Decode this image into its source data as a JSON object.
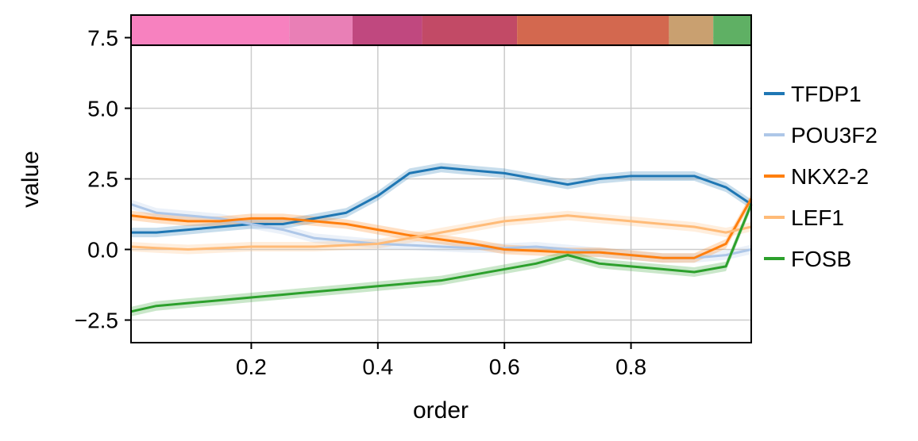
{
  "chart_data": {
    "type": "line",
    "xlabel": "order",
    "ylabel": "value",
    "xlim": [
      0.01,
      0.99
    ],
    "ylim": [
      -3.3,
      8.3
    ],
    "grid": true,
    "legend_placement": "right",
    "x_ticks": [
      0.2,
      0.4,
      0.6,
      0.8
    ],
    "x_tick_labels": [
      "0.2",
      "0.4",
      "0.6",
      "0.8"
    ],
    "y_ticks": [
      -2.5,
      0.0,
      2.5,
      5.0,
      7.5
    ],
    "y_tick_labels": [
      "−2.5",
      "0.0",
      "2.5",
      "5.0",
      "7.5"
    ],
    "color_bar": {
      "y_range": [
        7.2,
        8.3
      ],
      "segments": [
        {
          "from": 0.01,
          "to": 0.26,
          "color": "#f781bf"
        },
        {
          "from": 0.26,
          "to": 0.36,
          "color": "#e97fb6"
        },
        {
          "from": 0.36,
          "to": 0.47,
          "color": "#c0487f"
        },
        {
          "from": 0.47,
          "to": 0.62,
          "color": "#c24a66"
        },
        {
          "from": 0.62,
          "to": 0.86,
          "color": "#d3684f"
        },
        {
          "from": 0.86,
          "to": 0.93,
          "color": "#c9a070"
        },
        {
          "from": 0.93,
          "to": 0.99,
          "color": "#5fb064"
        }
      ]
    },
    "x": [
      0.01,
      0.05,
      0.1,
      0.15,
      0.2,
      0.25,
      0.3,
      0.35,
      0.4,
      0.45,
      0.5,
      0.55,
      0.6,
      0.65,
      0.7,
      0.75,
      0.8,
      0.85,
      0.9,
      0.95,
      0.99
    ],
    "series": [
      {
        "name": "TFDP1",
        "color": "#1f77b4",
        "values": [
          0.6,
          0.6,
          0.7,
          0.8,
          0.9,
          0.9,
          1.1,
          1.3,
          1.9,
          2.7,
          2.9,
          2.8,
          2.7,
          2.5,
          2.3,
          2.5,
          2.6,
          2.6,
          2.6,
          2.2,
          1.6
        ]
      },
      {
        "name": "POU3F2",
        "color": "#aec7e8",
        "values": [
          1.6,
          1.3,
          1.2,
          1.1,
          0.9,
          0.7,
          0.4,
          0.3,
          0.2,
          0.15,
          0.1,
          0.05,
          0.05,
          0.1,
          0.0,
          -0.1,
          -0.2,
          -0.3,
          -0.3,
          -0.2,
          0.0
        ]
      },
      {
        "name": "NKX2-2",
        "color": "#ff7f0e",
        "values": [
          1.2,
          1.1,
          1.0,
          1.0,
          1.1,
          1.1,
          1.0,
          0.9,
          0.7,
          0.5,
          0.35,
          0.2,
          0.0,
          -0.05,
          -0.1,
          -0.1,
          -0.2,
          -0.3,
          -0.3,
          0.2,
          1.8
        ]
      },
      {
        "name": "LEF1",
        "color": "#ffbb78",
        "values": [
          0.1,
          0.05,
          0.0,
          0.05,
          0.1,
          0.1,
          0.1,
          0.15,
          0.2,
          0.4,
          0.6,
          0.8,
          1.0,
          1.1,
          1.2,
          1.1,
          1.0,
          0.9,
          0.8,
          0.6,
          0.8
        ]
      },
      {
        "name": "FOSB",
        "color": "#2ca02c",
        "values": [
          -2.2,
          -2.0,
          -1.9,
          -1.8,
          -1.7,
          -1.6,
          -1.5,
          -1.4,
          -1.3,
          -1.2,
          -1.1,
          -0.9,
          -0.7,
          -0.5,
          -0.2,
          -0.5,
          -0.6,
          -0.7,
          -0.8,
          -0.6,
          1.6
        ]
      }
    ]
  }
}
